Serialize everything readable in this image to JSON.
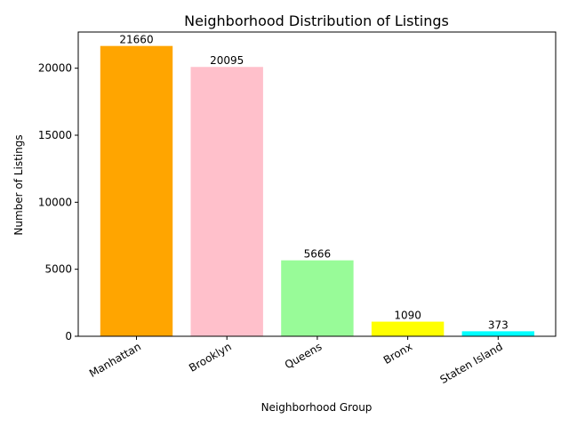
{
  "chart_data": {
    "type": "bar",
    "title": "Neighborhood Distribution of Listings",
    "xlabel": "Neighborhood Group",
    "ylabel": "Number of Listings",
    "categories": [
      "Manhattan",
      "Brooklyn",
      "Queens",
      "Bronx",
      "Staten Island"
    ],
    "values": [
      21660,
      20095,
      5666,
      1090,
      373
    ],
    "colors": [
      "#ffa500",
      "#ffc0cb",
      "#98fb98",
      "#ffff00",
      "#00ffff"
    ],
    "ylim": [
      0,
      22700
    ],
    "yticks": [
      0,
      5000,
      10000,
      15000,
      20000
    ],
    "grid": false,
    "legend": false
  }
}
